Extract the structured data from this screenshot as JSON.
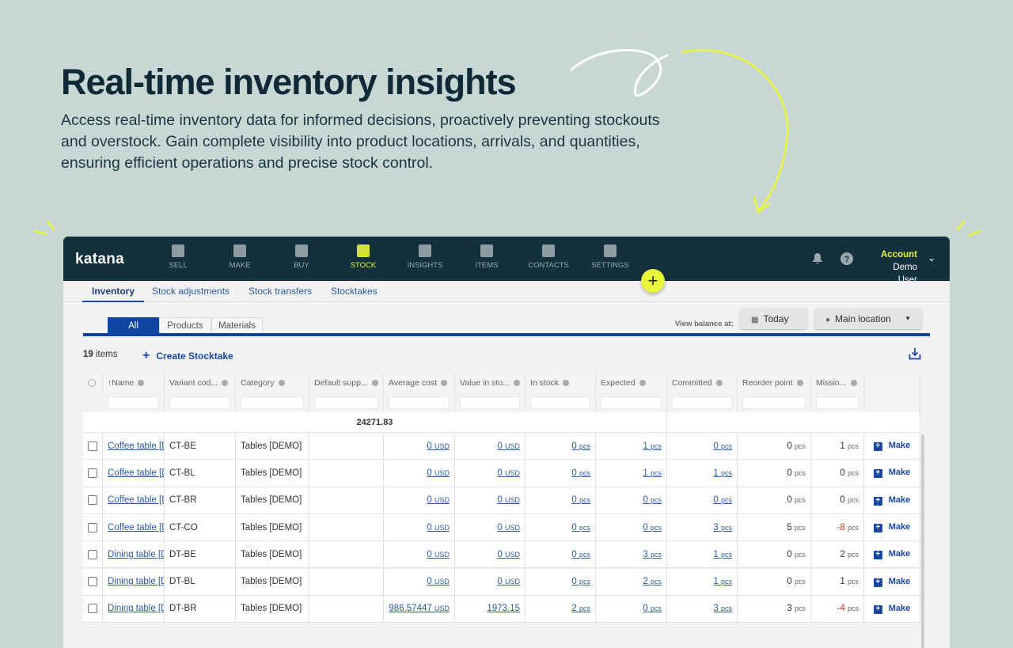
{
  "hero": {
    "title": "Real-time inventory insights",
    "text": "Access real-time inventory data for informed decisions, proactively preventing stockouts and overstock. Gain complete visibility into product locations, arrivals, and quantities, ensuring efficient operations and precise stock control."
  },
  "colors": {
    "accent": "#e9f53a",
    "nav_bg": "#12313c",
    "primary": "#0f44a3",
    "negative": "#d03b2a"
  },
  "app": {
    "logo": "katana",
    "nav": [
      {
        "label": "SELL",
        "icon": "store-icon"
      },
      {
        "label": "MAKE",
        "icon": "make-icon"
      },
      {
        "label": "BUY",
        "icon": "basket-icon"
      },
      {
        "label": "STOCK",
        "icon": "stock-icon",
        "active": true
      },
      {
        "label": "INSIGHTS",
        "icon": "chart-icon"
      },
      {
        "label": "ITEMS",
        "icon": "items-icon"
      },
      {
        "label": "CONTACTS",
        "icon": "contacts-icon"
      },
      {
        "label": "SETTINGS",
        "icon": "gear-icon"
      }
    ],
    "account": {
      "label": "Account",
      "user": "Demo User"
    },
    "subtabs": [
      "Inventory",
      "Stock adjustments",
      "Stock transfers",
      "Stocktakes"
    ],
    "filter_tabs": [
      "All",
      "Products",
      "Materials"
    ],
    "view_balance_label": "View balance at:",
    "date_button": "Today",
    "location_select": "Main location",
    "items_count": "19",
    "items_label": "items",
    "create_stocktake": "Create Stocktake",
    "columns": [
      "↑Name",
      "Variant cod...",
      "Category",
      "Default supp...",
      "Average cost",
      "Value in sto...",
      "In stock",
      "Expected",
      "Committed",
      "Reorder point",
      "Missin...",
      ""
    ],
    "total_value": "24271.83",
    "unit_usd": "USD",
    "unit_pcs": "pcs",
    "make_label": "Make",
    "rows": [
      {
        "name": "Coffee table [DEMO]",
        "variant": "CT-BE",
        "category": "Tables [DEMO]",
        "avg": "0",
        "value": "0",
        "value_unit": true,
        "in_stock": "0",
        "expected": "1",
        "committed": "0",
        "reorder": "0",
        "missing": "1"
      },
      {
        "name": "Coffee table [DEMO]",
        "variant": "CT-BL",
        "category": "Tables [DEMO]",
        "avg": "0",
        "value": "0",
        "value_unit": true,
        "in_stock": "0",
        "expected": "1",
        "committed": "1",
        "reorder": "0",
        "missing": "0"
      },
      {
        "name": "Coffee table [DEMO]",
        "variant": "CT-BR",
        "category": "Tables [DEMO]",
        "avg": "0",
        "value": "0",
        "value_unit": true,
        "in_stock": "0",
        "expected": "0",
        "committed": "0",
        "reorder": "0",
        "missing": "0"
      },
      {
        "name": "Coffee table [DEMO]",
        "variant": "CT-CO",
        "category": "Tables [DEMO]",
        "avg": "0",
        "value": "0",
        "value_unit": true,
        "in_stock": "0",
        "expected": "0",
        "committed": "3",
        "reorder": "5",
        "missing": "-8",
        "negative": true
      },
      {
        "name": "Dining table [DEMO]",
        "variant": "DT-BE",
        "category": "Tables [DEMO]",
        "avg": "0",
        "value": "0",
        "value_unit": true,
        "in_stock": "0",
        "expected": "3",
        "committed": "1",
        "reorder": "0",
        "missing": "2"
      },
      {
        "name": "Dining table [DEMO]",
        "variant": "DT-BL",
        "category": "Tables [DEMO]",
        "avg": "0",
        "value": "0",
        "value_unit": true,
        "in_stock": "0",
        "expected": "2",
        "committed": "1",
        "reorder": "0",
        "missing": "1"
      },
      {
        "name": "Dining table [DEMO]",
        "variant": "DT-BR",
        "category": "Tables [DEMO]",
        "avg": "986.57447",
        "value": "1973.15",
        "value_unit": false,
        "in_stock": "2",
        "expected": "0",
        "committed": "3",
        "reorder": "3",
        "missing": "-4",
        "negative": true
      }
    ]
  }
}
